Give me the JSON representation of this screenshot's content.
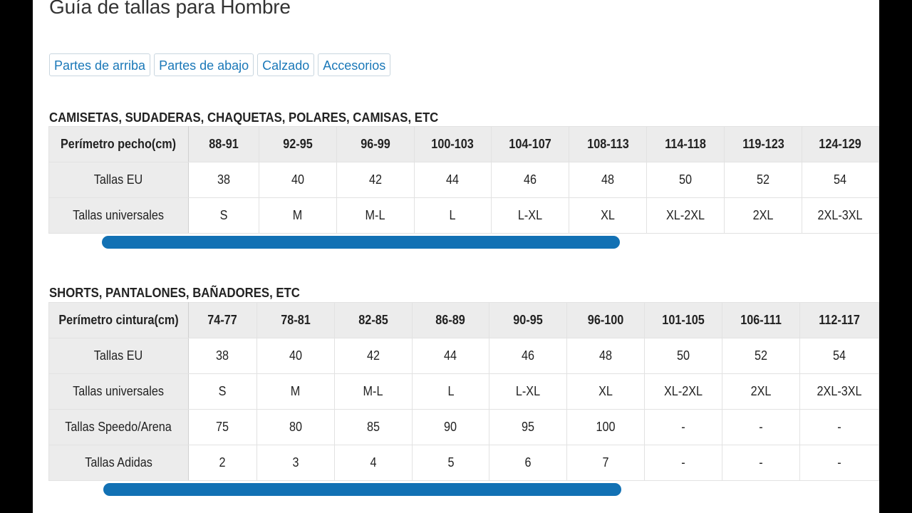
{
  "page": {
    "title": "Guía de tallas para Hombre"
  },
  "tabs": [
    "Partes de arriba",
    "Partes de abajo",
    "Calzado",
    "Accesorios"
  ],
  "tops": {
    "title": "CAMISETAS, SUDADERAS, CHAQUETAS, POLARES, CAMISAS, ETC",
    "rows": [
      [
        "Perímetro pecho(cm)",
        "88-91",
        "92-95",
        "96-99",
        "100-103",
        "104-107",
        "108-113",
        "114-118",
        "119-123",
        "124-129"
      ],
      [
        "Tallas EU",
        "38",
        "40",
        "42",
        "44",
        "46",
        "48",
        "50",
        "52",
        "54"
      ],
      [
        "Tallas universales",
        "S",
        "M",
        "M-L",
        "L",
        "L-XL",
        "XL",
        "XL-2XL",
        "2XL",
        "2XL-3XL"
      ]
    ]
  },
  "bottoms": {
    "title": "SHORTS, PANTALONES, BAÑADORES, ETC",
    "rows": [
      [
        "Perímetro cintura(cm)",
        "74-77",
        "78-81",
        "82-85",
        "86-89",
        "90-95",
        "96-100",
        "101-105",
        "106-111",
        "112-117"
      ],
      [
        "Tallas EU",
        "38",
        "40",
        "42",
        "44",
        "46",
        "48",
        "50",
        "52",
        "54"
      ],
      [
        "Tallas universales",
        "S",
        "M",
        "M-L",
        "L",
        "L-XL",
        "XL",
        "XL-2XL",
        "2XL",
        "2XL-3XL"
      ],
      [
        "Tallas Speedo/Arena",
        "75",
        "80",
        "85",
        "90",
        "95",
        "100",
        "-",
        "-",
        "-"
      ],
      [
        "Tallas Adidas",
        "2",
        "3",
        "4",
        "5",
        "6",
        "7",
        "-",
        "-",
        "-"
      ]
    ]
  },
  "colors": {
    "accent": "#1a78b8",
    "scrollbar": "#1271b4",
    "header_bg": "#ececec"
  }
}
